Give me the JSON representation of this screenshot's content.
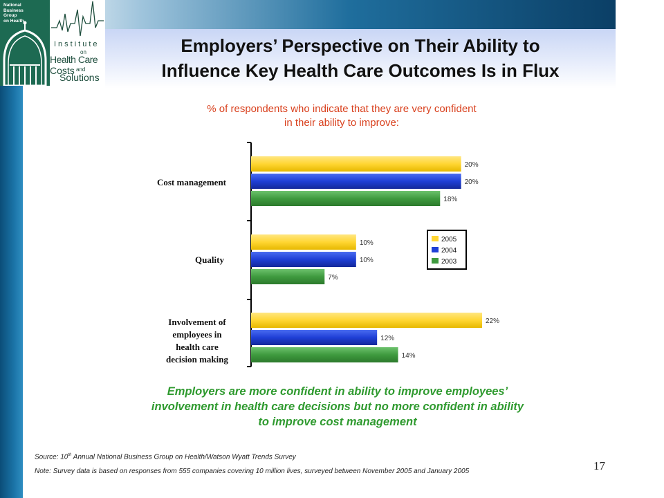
{
  "logo": {
    "org_text": "National\nBusiness\nGroup\non Health",
    "institute_lines": [
      "Institute",
      "on",
      "Health Care",
      "Costs",
      "and",
      "Solutions"
    ]
  },
  "title": "Employers’ Perspective on Their Ability to\nInfluence Key Health Care Outcomes Is in Flux",
  "chart_data": {
    "type": "bar",
    "orientation": "horizontal",
    "title": "% of respondents who indicate that they are very confident\nin their ability to improve:",
    "categories": [
      "Cost management",
      "Quality",
      "Involvement of\nemployees in\nhealth care\ndecision making"
    ],
    "series": [
      {
        "name": "2005",
        "color": "#ffd633",
        "values": [
          20,
          10,
          22
        ],
        "labels": [
          "20%",
          "10%",
          "22%"
        ]
      },
      {
        "name": "2004",
        "color": "#1f3fd6",
        "values": [
          20,
          10,
          12
        ],
        "labels": [
          "20%",
          "10%",
          "12%"
        ]
      },
      {
        "name": "2003",
        "color": "#3f9a3f",
        "values": [
          18,
          7,
          14
        ],
        "labels": [
          "18%",
          "7%",
          "14%"
        ]
      }
    ],
    "xlim": [
      0,
      23
    ],
    "legend": "right",
    "conclusion": "Employers are more confident in ability to improve employees’\ninvolvement in health care decisions but no more confident in ability\nto improve cost management",
    "colors": {
      "title": "#d9411e",
      "conclusion": "#2f9a2f"
    }
  },
  "source_prefix": "Source: 10",
  "source_sup": "th",
  "source_rest": " Annual National Business Group on Health/Watson Wyatt Trends Survey",
  "note": "Note: Survey data is based on responses from 555 companies covering 10 million lives, surveyed between November 2005 and January 2005",
  "page_number": "17"
}
